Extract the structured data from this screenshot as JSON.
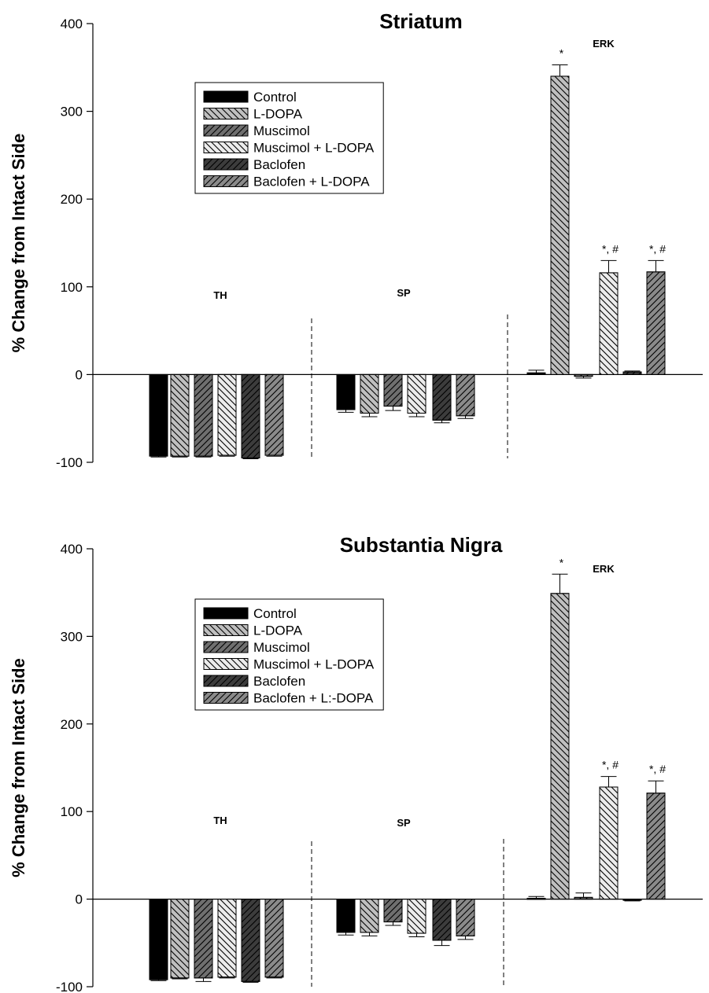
{
  "chart_data": [
    {
      "type": "bar",
      "title": "Striatum",
      "ylabel": "% Change from Intact Side",
      "ylim": [
        -100,
        400
      ],
      "yticks": [
        -100,
        0,
        100,
        200,
        300,
        400
      ],
      "categories": [
        "TH",
        "SP",
        "ERK"
      ],
      "legend": {
        "placement": "upper-left",
        "entries": [
          "Control",
          "L-DOPA",
          "Muscimol",
          "Muscimol + L-DOPA",
          "Baclofen",
          "Baclofen + L-DOPA"
        ]
      },
      "series": [
        {
          "name": "Control",
          "values": [
            -93,
            -40,
            2
          ],
          "errors": [
            1,
            3,
            3
          ],
          "annotations": [
            "",
            "",
            ""
          ],
          "fill": "#000000",
          "hatch": "none"
        },
        {
          "name": "L-DOPA",
          "values": [
            -93,
            -44,
            340
          ],
          "errors": [
            1,
            4,
            13
          ],
          "annotations": [
            "",
            "",
            "*"
          ],
          "fill": "#bfbfbf",
          "hatch": "back"
        },
        {
          "name": "Muscimol",
          "values": [
            -93,
            -36,
            -2
          ],
          "errors": [
            1,
            5,
            2
          ],
          "annotations": [
            "",
            "",
            ""
          ],
          "fill": "#6f6f6f",
          "hatch": "fwd"
        },
        {
          "name": "Muscimol + L-DOPA",
          "values": [
            -92,
            -44,
            116
          ],
          "errors": [
            1,
            4,
            14
          ],
          "annotations": [
            "",
            "",
            "*, #"
          ],
          "fill": "#ececec",
          "hatch": "back"
        },
        {
          "name": "Baclofen",
          "values": [
            -95,
            -52,
            3
          ],
          "errors": [
            1,
            3,
            1
          ],
          "annotations": [
            "",
            "",
            ""
          ],
          "fill": "#3c3c3c",
          "hatch": "fwd"
        },
        {
          "name": "Baclofen + L-DOPA",
          "values": [
            -92,
            -47,
            117
          ],
          "errors": [
            1,
            3,
            13
          ],
          "annotations": [
            "",
            "",
            "*, #"
          ],
          "fill": "#8a8a8a",
          "hatch": "fwd"
        }
      ]
    },
    {
      "type": "bar",
      "title": "Substantia Nigra",
      "ylabel": "% Change from Intact Side",
      "ylim": [
        -100,
        400
      ],
      "yticks": [
        -100,
        0,
        100,
        200,
        300,
        400
      ],
      "categories": [
        "TH",
        "SP",
        "ERK"
      ],
      "legend": {
        "placement": "upper-left",
        "entries": [
          "Control",
          "L-DOPA",
          "Muscimol",
          "Muscimol + L-DOPA",
          "Baclofen",
          "Baclofen + L:-DOPA"
        ]
      },
      "series": [
        {
          "name": "Control",
          "values": [
            -92,
            -38,
            1
          ],
          "errors": [
            1,
            3,
            2
          ],
          "annotations": [
            "",
            "",
            ""
          ],
          "fill": "#000000",
          "hatch": "none"
        },
        {
          "name": "L-DOPA",
          "values": [
            -90,
            -38,
            349
          ],
          "errors": [
            1,
            4,
            22
          ],
          "annotations": [
            "",
            "",
            "*"
          ],
          "fill": "#bfbfbf",
          "hatch": "back"
        },
        {
          "name": "Muscimol",
          "values": [
            -90,
            -26,
            2
          ],
          "errors": [
            4,
            4,
            5
          ],
          "annotations": [
            "",
            "",
            ""
          ],
          "fill": "#6f6f6f",
          "hatch": "fwd"
        },
        {
          "name": "Muscimol + L-DOPA",
          "values": [
            -89,
            -39,
            128
          ],
          "errors": [
            1,
            4,
            12
          ],
          "annotations": [
            "",
            "",
            "*, #"
          ],
          "fill": "#ececec",
          "hatch": "back"
        },
        {
          "name": "Baclofen",
          "values": [
            -94,
            -47,
            -1
          ],
          "errors": [
            1,
            6,
            1
          ],
          "annotations": [
            "",
            "",
            ""
          ],
          "fill": "#3c3c3c",
          "hatch": "fwd"
        },
        {
          "name": "Baclofen + L:-DOPA",
          "values": [
            -89,
            -42,
            121
          ],
          "errors": [
            1,
            4,
            14
          ],
          "annotations": [
            "",
            "",
            "*, #"
          ],
          "fill": "#8a8a8a",
          "hatch": "fwd"
        }
      ]
    }
  ]
}
